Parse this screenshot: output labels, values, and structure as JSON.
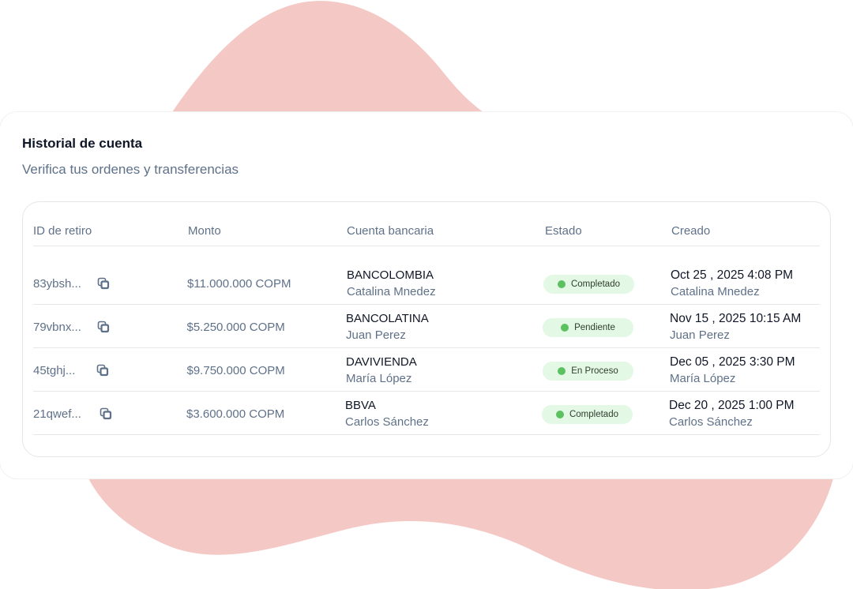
{
  "header": {
    "title": "Historial de cuenta",
    "subtitle": "Verifica tus ordenes y transferencias"
  },
  "colors": {
    "blob": "#f4c8c4",
    "badge_bg": "#e3f8e5",
    "status_dot": "#5cc160"
  },
  "table": {
    "columns": [
      "ID  de retiro",
      "Monto",
      "Cuenta bancaria",
      "Estado",
      "Creado"
    ],
    "rows": [
      {
        "id": "83ybsh...",
        "amount": "$11.000.000 COPM",
        "bank": "BANCOLOMBIA",
        "account_owner": "Catalina Mnedez",
        "status": "Completado",
        "created": "Oct 25 , 2025 4:08 PM",
        "created_by": "Catalina Mnedez"
      },
      {
        "id": "79vbnx...",
        "amount": "$5.250.000 COPM",
        "bank": "BANCOLATINA",
        "account_owner": "Juan Perez",
        "status": "Pendiente",
        "created": "Nov 15 , 2025 10:15 AM",
        "created_by": "Juan Perez"
      },
      {
        "id": "45tghj...",
        "amount": "$9.750.000 COPM",
        "bank": "DAVIVIENDA",
        "account_owner": "María López",
        "status": "En Proceso",
        "created": "Dec 05 , 2025 3:30 PM",
        "created_by": "María López"
      },
      {
        "id": "21qwef...",
        "amount": "$3.600.000 COPM",
        "bank": "BBVA",
        "account_owner": "Carlos Sánchez",
        "status": "Completado",
        "created": "Dec 20 , 2025 1:00 PM",
        "created_by": "Carlos Sánchez"
      }
    ]
  }
}
